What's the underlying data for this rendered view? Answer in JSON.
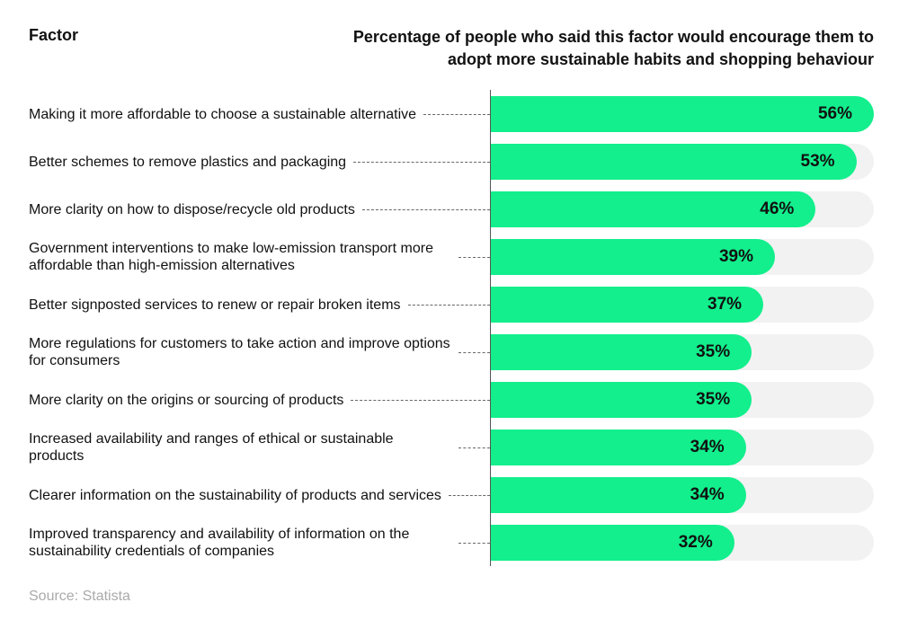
{
  "chart_data": {
    "type": "bar",
    "orientation": "horizontal",
    "category_header": "Factor",
    "title": "Percentage of people who said this factor would encourage them to adopt more sustainable habits and shopping behaviour",
    "categories": [
      "Making it more affordable to choose a sustainable alternative",
      "Better schemes to remove plastics and packaging",
      "More clarity on how to dispose/recycle old products",
      "Government interventions to make low-emission transport more affordable than high-emission alternatives",
      "Better signposted services to renew or repair broken items",
      "More regulations for customers to take action and improve options for consumers",
      "More clarity on the origins or sourcing of products",
      "Increased availability and ranges of ethical or sustainable products",
      "Clearer information on the sustainability of products and services",
      "Improved transparency and availability of information on the sustainability credentials of companies"
    ],
    "values": [
      56,
      53,
      46,
      39,
      37,
      35,
      35,
      34,
      34,
      32
    ],
    "value_labels": [
      "56%",
      "53%",
      "46%",
      "39%",
      "37%",
      "35%",
      "35%",
      "34%",
      "34%",
      "32%"
    ],
    "color": "#12ef8c",
    "track_color": "#f2f2f2",
    "xlim": [
      -10,
      56
    ],
    "source": "Source: Statista"
  }
}
